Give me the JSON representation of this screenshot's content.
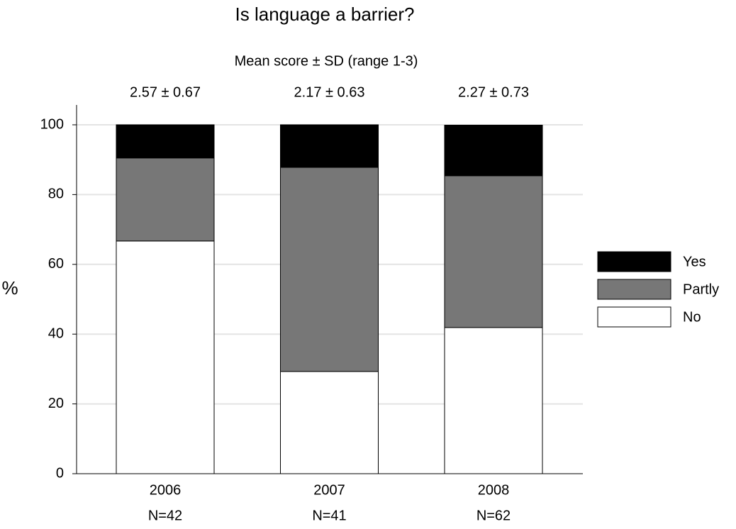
{
  "chart_data": {
    "type": "stacked_bar",
    "title": "Is language a barrier?",
    "subtitle": "Mean score ± SD (range 1-3)",
    "y_label": "%",
    "categories": [
      "2006",
      "2007",
      "2008"
    ],
    "annotations": [
      "2.57 ± 0.67",
      "2.17 ± 0.63",
      "2.27 ± 0.73"
    ],
    "n_labels": [
      "N=42",
      "N=41",
      "N=62"
    ],
    "series": [
      {
        "name": "No",
        "color": "#ffffff",
        "values": [
          66.7,
          29.3,
          41.9
        ]
      },
      {
        "name": "Partly",
        "color": "#777777",
        "values": [
          23.8,
          58.5,
          43.5
        ]
      },
      {
        "name": "Yes",
        "color": "#000000",
        "values": [
          9.5,
          12.2,
          14.5
        ]
      }
    ],
    "ylim": [
      0,
      100
    ],
    "yticks": [
      0,
      20,
      40,
      60,
      80,
      100
    ],
    "grid": true,
    "legend": "right"
  }
}
